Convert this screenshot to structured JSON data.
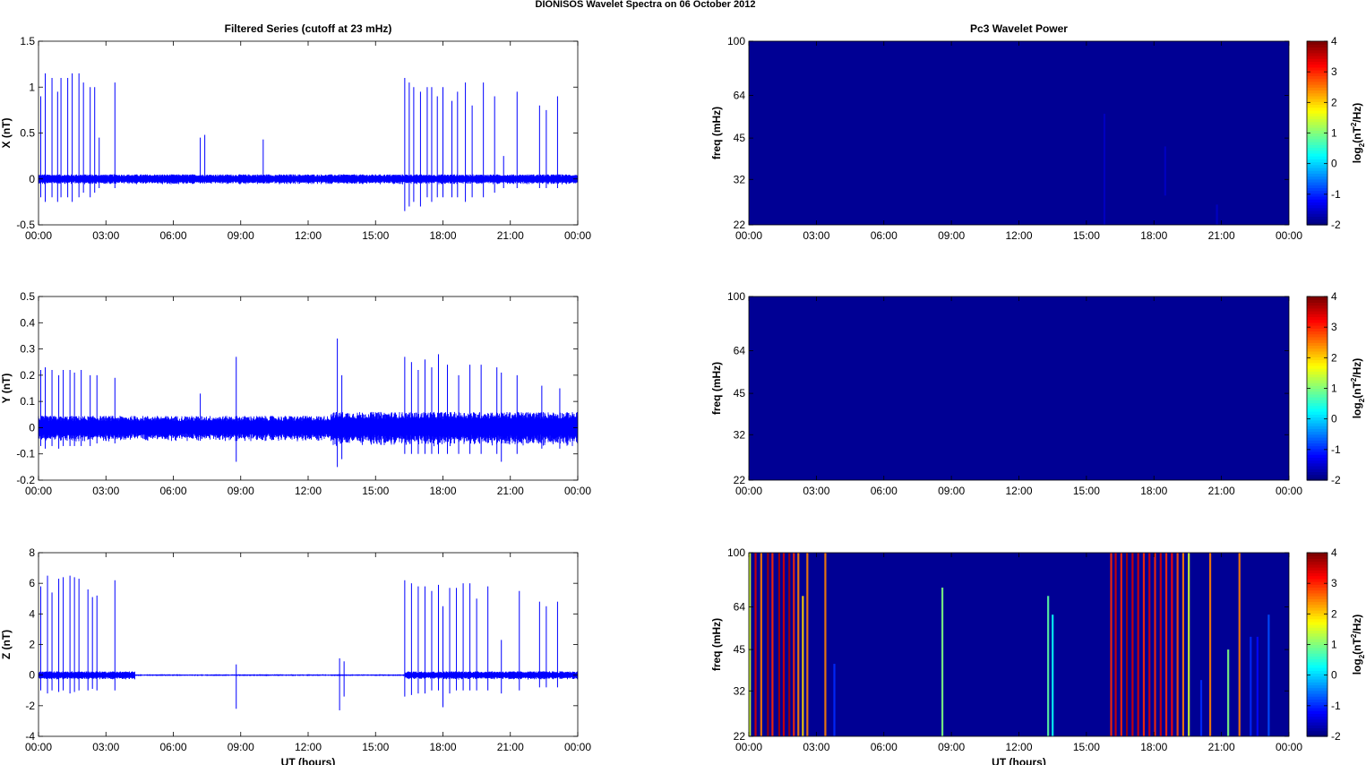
{
  "figure_title": "DIONISOS Wavelet Spectra on 06 October   2012",
  "chart_data": [
    {
      "type": "line",
      "title": "Filtered Series (cutoff at 23 mHz)",
      "xlabel": "",
      "ylabel": "X (nT)",
      "x_ticklabels": [
        "00:00",
        "03:00",
        "06:00",
        "09:00",
        "12:00",
        "15:00",
        "18:00",
        "21:00",
        "00:00"
      ],
      "xlim_hours": [
        0,
        24
      ],
      "ylim": [
        -0.5,
        1.5
      ],
      "y_ticks": [
        -0.5,
        0,
        0.5,
        1,
        1.5
      ],
      "y_ticklabels": [
        "-0.5",
        "0",
        "0.5",
        "1",
        "1.5"
      ],
      "color": "#0000ff",
      "noise_band": [
        {
          "from_hour": 0,
          "to_hour": 24,
          "amplitude": 0.05
        }
      ],
      "spikes": [
        {
          "t": 0.1,
          "max": 0.9,
          "min": -0.2
        },
        {
          "t": 0.3,
          "max": 1.15,
          "min": -0.25
        },
        {
          "t": 0.6,
          "max": 1.1,
          "min": -0.2
        },
        {
          "t": 0.85,
          "max": 0.95,
          "min": -0.25
        },
        {
          "t": 1.0,
          "max": 1.1,
          "min": -0.2
        },
        {
          "t": 1.3,
          "max": 1.1,
          "min": -0.2
        },
        {
          "t": 1.5,
          "max": 1.15,
          "min": -0.25
        },
        {
          "t": 1.8,
          "max": 1.15,
          "min": -0.2
        },
        {
          "t": 2.0,
          "max": 1.05,
          "min": -0.15
        },
        {
          "t": 2.3,
          "max": 1.0,
          "min": -0.2
        },
        {
          "t": 2.5,
          "max": 1.0,
          "min": -0.15
        },
        {
          "t": 2.7,
          "max": 0.45,
          "min": -0.1
        },
        {
          "t": 3.4,
          "max": 1.05,
          "min": -0.1
        },
        {
          "t": 7.2,
          "max": 0.45,
          "min": -0.05
        },
        {
          "t": 7.4,
          "max": 0.48,
          "min": -0.05
        },
        {
          "t": 10.0,
          "max": 0.43,
          "min": -0.05
        },
        {
          "t": 16.3,
          "max": 1.1,
          "min": -0.35
        },
        {
          "t": 16.5,
          "max": 1.05,
          "min": -0.3
        },
        {
          "t": 16.7,
          "max": 1.0,
          "min": -0.25
        },
        {
          "t": 17.0,
          "max": 0.95,
          "min": -0.3
        },
        {
          "t": 17.3,
          "max": 1.0,
          "min": -0.2
        },
        {
          "t": 17.5,
          "max": 1.0,
          "min": -0.25
        },
        {
          "t": 17.75,
          "max": 0.9,
          "min": -0.2
        },
        {
          "t": 18.0,
          "max": 1.0,
          "min": -0.2
        },
        {
          "t": 18.4,
          "max": 0.85,
          "min": -0.2
        },
        {
          "t": 18.65,
          "max": 0.95,
          "min": -0.2
        },
        {
          "t": 19.0,
          "max": 1.05,
          "min": -0.25
        },
        {
          "t": 19.3,
          "max": 0.8,
          "min": -0.2
        },
        {
          "t": 19.8,
          "max": 1.05,
          "min": -0.2
        },
        {
          "t": 20.3,
          "max": 0.9,
          "min": -0.15
        },
        {
          "t": 20.7,
          "max": 0.25,
          "min": -0.1
        },
        {
          "t": 21.3,
          "max": 0.95,
          "min": -0.1
        },
        {
          "t": 22.3,
          "max": 0.8,
          "min": -0.1
        },
        {
          "t": 22.6,
          "max": 0.75,
          "min": -0.1
        },
        {
          "t": 23.1,
          "max": 0.9,
          "min": -0.1
        }
      ]
    },
    {
      "type": "heatmap",
      "title": "Pc3 Wavelet Power",
      "xlabel": "",
      "ylabel": "freq (mHz)",
      "x_ticklabels": [
        "00:00",
        "03:00",
        "06:00",
        "09:00",
        "12:00",
        "15:00",
        "18:00",
        "21:00",
        "00:00"
      ],
      "xlim_hours": [
        0,
        24
      ],
      "y_scale": "log",
      "ylim_mHz": [
        22,
        100
      ],
      "y_ticks": [
        22,
        32,
        45,
        64,
        100
      ],
      "y_ticklabels": [
        "22",
        "32",
        "45",
        "64",
        "100"
      ],
      "colorbar": {
        "label_base": "log",
        "label_sub": "2",
        "label_mid": "(nT",
        "label_sup": "2",
        "label_tail": "/Hz)",
        "range": [
          -2,
          4
        ],
        "ticks": [
          -2,
          -1,
          0,
          1,
          2,
          3,
          4
        ],
        "ticklabels": [
          "-2",
          "-1",
          "0",
          "1",
          "2",
          "3",
          "4"
        ]
      },
      "background_level": -2,
      "features": [
        {
          "t": 15.8,
          "level": -1.6,
          "fmin": 22,
          "fmax": 55
        },
        {
          "t": 18.5,
          "level": -1.6,
          "fmin": 28,
          "fmax": 42
        },
        {
          "t": 20.8,
          "level": -1.6,
          "fmin": 22,
          "fmax": 26
        }
      ]
    },
    {
      "type": "line",
      "title": "",
      "xlabel": "",
      "ylabel": "Y (nT)",
      "x_ticklabels": [
        "00:00",
        "03:00",
        "06:00",
        "09:00",
        "12:00",
        "15:00",
        "18:00",
        "21:00",
        "00:00"
      ],
      "xlim_hours": [
        0,
        24
      ],
      "ylim": [
        -0.2,
        0.5
      ],
      "y_ticks": [
        -0.2,
        -0.1,
        0,
        0.1,
        0.2,
        0.3,
        0.4,
        0.5
      ],
      "y_ticklabels": [
        "-0.2",
        "-0.1",
        "0",
        "0.1",
        "0.2",
        "0.3",
        "0.4",
        "0.5"
      ],
      "color": "#0000ff",
      "noise_band": [
        {
          "from_hour": 0,
          "to_hour": 13,
          "amplitude": 0.045
        },
        {
          "from_hour": 13,
          "to_hour": 24,
          "amplitude": 0.06
        }
      ],
      "spikes": [
        {
          "t": 0.1,
          "max": 0.22,
          "min": -0.07
        },
        {
          "t": 0.3,
          "max": 0.23,
          "min": -0.08
        },
        {
          "t": 0.6,
          "max": 0.22,
          "min": -0.07
        },
        {
          "t": 0.9,
          "max": 0.2,
          "min": -0.08
        },
        {
          "t": 1.1,
          "max": 0.22,
          "min": -0.07
        },
        {
          "t": 1.4,
          "max": 0.22,
          "min": -0.07
        },
        {
          "t": 1.6,
          "max": 0.21,
          "min": -0.07
        },
        {
          "t": 1.9,
          "max": 0.22,
          "min": -0.07
        },
        {
          "t": 2.3,
          "max": 0.2,
          "min": -0.07
        },
        {
          "t": 2.6,
          "max": 0.2,
          "min": -0.06
        },
        {
          "t": 3.4,
          "max": 0.19,
          "min": -0.06
        },
        {
          "t": 7.2,
          "max": 0.13,
          "min": -0.05
        },
        {
          "t": 8.8,
          "max": 0.27,
          "min": -0.13
        },
        {
          "t": 13.3,
          "max": 0.34,
          "min": -0.15
        },
        {
          "t": 13.5,
          "max": 0.2,
          "min": -0.12
        },
        {
          "t": 16.3,
          "max": 0.27,
          "min": -0.1
        },
        {
          "t": 16.6,
          "max": 0.25,
          "min": -0.1
        },
        {
          "t": 16.9,
          "max": 0.22,
          "min": -0.1
        },
        {
          "t": 17.2,
          "max": 0.26,
          "min": -0.1
        },
        {
          "t": 17.5,
          "max": 0.23,
          "min": -0.1
        },
        {
          "t": 17.8,
          "max": 0.28,
          "min": -0.1
        },
        {
          "t": 18.2,
          "max": 0.24,
          "min": -0.1
        },
        {
          "t": 18.7,
          "max": 0.2,
          "min": -0.1
        },
        {
          "t": 19.2,
          "max": 0.24,
          "min": -0.1
        },
        {
          "t": 19.7,
          "max": 0.24,
          "min": -0.1
        },
        {
          "t": 20.4,
          "max": 0.23,
          "min": -0.1
        },
        {
          "t": 20.6,
          "max": 0.21,
          "min": -0.13
        },
        {
          "t": 21.3,
          "max": 0.2,
          "min": -0.1
        },
        {
          "t": 22.4,
          "max": 0.16,
          "min": -0.08
        },
        {
          "t": 23.2,
          "max": 0.15,
          "min": -0.08
        }
      ]
    },
    {
      "type": "heatmap",
      "title": "",
      "xlabel": "",
      "ylabel": "freq (mHz)",
      "x_ticklabels": [
        "00:00",
        "03:00",
        "06:00",
        "09:00",
        "12:00",
        "15:00",
        "18:00",
        "21:00",
        "00:00"
      ],
      "xlim_hours": [
        0,
        24
      ],
      "y_scale": "log",
      "ylim_mHz": [
        22,
        100
      ],
      "y_ticks": [
        22,
        32,
        45,
        64,
        100
      ],
      "y_ticklabels": [
        "22",
        "32",
        "45",
        "64",
        "100"
      ],
      "colorbar": {
        "label_base": "log",
        "label_sub": "2",
        "label_mid": "(nT",
        "label_sup": "2",
        "label_tail": "/Hz)",
        "range": [
          -2,
          4
        ],
        "ticks": [
          -2,
          -1,
          0,
          1,
          2,
          3,
          4
        ],
        "ticklabels": [
          "-2",
          "-1",
          "0",
          "1",
          "2",
          "3",
          "4"
        ]
      },
      "background_level": -2,
      "features": []
    },
    {
      "type": "line",
      "title": "",
      "xlabel": "UT (hours)",
      "ylabel": "Z (nT)",
      "x_ticklabels": [
        "00:00",
        "03:00",
        "06:00",
        "09:00",
        "12:00",
        "15:00",
        "18:00",
        "21:00",
        "00:00"
      ],
      "xlim_hours": [
        0,
        24
      ],
      "ylim": [
        -4,
        8
      ],
      "y_ticks": [
        -4,
        -2,
        0,
        2,
        4,
        6,
        8
      ],
      "y_ticklabels": [
        "-4",
        "-2",
        "0",
        "2",
        "4",
        "6",
        "8"
      ],
      "color": "#0000ff",
      "noise_band": [
        {
          "from_hour": 0,
          "to_hour": 4.3,
          "amplitude": 0.25
        },
        {
          "from_hour": 4.3,
          "to_hour": 16.3,
          "amplitude": 0.05
        },
        {
          "from_hour": 16.3,
          "to_hour": 24,
          "amplitude": 0.25
        }
      ],
      "spikes": [
        {
          "t": 0.1,
          "max": 5.8,
          "min": -1.0
        },
        {
          "t": 0.4,
          "max": 6.5,
          "min": -1.2
        },
        {
          "t": 0.6,
          "max": 5.4,
          "min": -1.0
        },
        {
          "t": 0.9,
          "max": 6.3,
          "min": -1.1
        },
        {
          "t": 1.1,
          "max": 6.4,
          "min": -1.0
        },
        {
          "t": 1.4,
          "max": 6.5,
          "min": -1.2
        },
        {
          "t": 1.6,
          "max": 6.4,
          "min": -1.1
        },
        {
          "t": 1.8,
          "max": 6.3,
          "min": -1.0
        },
        {
          "t": 2.2,
          "max": 5.6,
          "min": -1.0
        },
        {
          "t": 2.4,
          "max": 5.1,
          "min": -0.9
        },
        {
          "t": 2.6,
          "max": 5.2,
          "min": -1.0
        },
        {
          "t": 3.4,
          "max": 6.2,
          "min": -1.0
        },
        {
          "t": 8.8,
          "max": 0.7,
          "min": -2.2
        },
        {
          "t": 13.4,
          "max": 1.1,
          "min": -2.3
        },
        {
          "t": 13.6,
          "max": 0.9,
          "min": -1.4
        },
        {
          "t": 16.3,
          "max": 6.2,
          "min": -1.4
        },
        {
          "t": 16.6,
          "max": 6.0,
          "min": -1.3
        },
        {
          "t": 16.9,
          "max": 5.8,
          "min": -1.2
        },
        {
          "t": 17.2,
          "max": 5.8,
          "min": -1.2
        },
        {
          "t": 17.5,
          "max": 5.5,
          "min": -1.0
        },
        {
          "t": 17.8,
          "max": 5.9,
          "min": -1.0
        },
        {
          "t": 18.0,
          "max": 4.5,
          "min": -2.1
        },
        {
          "t": 18.3,
          "max": 5.7,
          "min": -1.2
        },
        {
          "t": 18.6,
          "max": 5.7,
          "min": -1.0
        },
        {
          "t": 18.9,
          "max": 6.0,
          "min": -1.0
        },
        {
          "t": 19.2,
          "max": 6.0,
          "min": -1.0
        },
        {
          "t": 19.5,
          "max": 5.0,
          "min": -1.0
        },
        {
          "t": 20.0,
          "max": 5.8,
          "min": -1.0
        },
        {
          "t": 20.6,
          "max": 2.3,
          "min": -1.2
        },
        {
          "t": 21.4,
          "max": 5.5,
          "min": -1.0
        },
        {
          "t": 22.3,
          "max": 4.8,
          "min": -0.8
        },
        {
          "t": 22.6,
          "max": 4.5,
          "min": -0.8
        },
        {
          "t": 23.1,
          "max": 4.8,
          "min": -0.8
        }
      ]
    },
    {
      "type": "heatmap",
      "title": "",
      "xlabel": "UT (hours)",
      "ylabel": "freq (mHz)",
      "x_ticklabels": [
        "00:00",
        "03:00",
        "06:00",
        "09:00",
        "12:00",
        "15:00",
        "18:00",
        "21:00",
        "00:00"
      ],
      "xlim_hours": [
        0,
        24
      ],
      "y_scale": "log",
      "ylim_mHz": [
        22,
        100
      ],
      "y_ticks": [
        22,
        32,
        45,
        64,
        100
      ],
      "y_ticklabels": [
        "22",
        "32",
        "45",
        "64",
        "100"
      ],
      "colorbar": {
        "label_base": "log",
        "label_sub": "2",
        "label_mid": "(nT",
        "label_sup": "2",
        "label_tail": "/Hz)",
        "range": [
          -2,
          4
        ],
        "ticks": [
          -2,
          -1,
          0,
          1,
          2,
          3,
          4
        ],
        "ticklabels": [
          "-2",
          "-1",
          "0",
          "1",
          "2",
          "3",
          "4"
        ]
      },
      "background_level": -2,
      "features": [
        {
          "t": 0.05,
          "level": 1.5,
          "fmin": 22,
          "fmax": 100
        },
        {
          "t": 0.3,
          "level": 3.5,
          "fmin": 22,
          "fmax": 100
        },
        {
          "t": 0.55,
          "level": 2.5,
          "fmin": 22,
          "fmax": 100
        },
        {
          "t": 0.85,
          "level": 3.8,
          "fmin": 22,
          "fmax": 100
        },
        {
          "t": 1.05,
          "level": 3.0,
          "fmin": 22,
          "fmax": 100
        },
        {
          "t": 1.35,
          "level": 3.8,
          "fmin": 22,
          "fmax": 100
        },
        {
          "t": 1.55,
          "level": 3.5,
          "fmin": 22,
          "fmax": 100
        },
        {
          "t": 1.8,
          "level": 3.8,
          "fmin": 22,
          "fmax": 100
        },
        {
          "t": 2.0,
          "level": 3.0,
          "fmin": 22,
          "fmax": 100
        },
        {
          "t": 2.2,
          "level": 2.5,
          "fmin": 22,
          "fmax": 100
        },
        {
          "t": 2.4,
          "level": 2.0,
          "fmin": 22,
          "fmax": 70
        },
        {
          "t": 2.6,
          "level": 2.5,
          "fmin": 22,
          "fmax": 100
        },
        {
          "t": 3.4,
          "level": 2.5,
          "fmin": 22,
          "fmax": 100
        },
        {
          "t": 3.8,
          "level": -1.0,
          "fmin": 22,
          "fmax": 40
        },
        {
          "t": 8.6,
          "level": 1.0,
          "fmin": 22,
          "fmax": 75
        },
        {
          "t": 13.3,
          "level": 0.8,
          "fmin": 22,
          "fmax": 70
        },
        {
          "t": 13.5,
          "level": 0.3,
          "fmin": 22,
          "fmax": 60
        },
        {
          "t": 16.1,
          "level": 3.0,
          "fmin": 22,
          "fmax": 100
        },
        {
          "t": 16.3,
          "level": 3.5,
          "fmin": 22,
          "fmax": 100
        },
        {
          "t": 16.55,
          "level": 3.0,
          "fmin": 22,
          "fmax": 100
        },
        {
          "t": 16.8,
          "level": 3.8,
          "fmin": 22,
          "fmax": 100
        },
        {
          "t": 17.05,
          "level": 3.5,
          "fmin": 22,
          "fmax": 100
        },
        {
          "t": 17.3,
          "level": 3.5,
          "fmin": 22,
          "fmax": 100
        },
        {
          "t": 17.55,
          "level": 3.0,
          "fmin": 22,
          "fmax": 100
        },
        {
          "t": 17.8,
          "level": 3.5,
          "fmin": 22,
          "fmax": 100
        },
        {
          "t": 18.05,
          "level": 3.0,
          "fmin": 22,
          "fmax": 100
        },
        {
          "t": 18.3,
          "level": 3.5,
          "fmin": 22,
          "fmax": 100
        },
        {
          "t": 18.55,
          "level": 3.0,
          "fmin": 22,
          "fmax": 100
        },
        {
          "t": 18.8,
          "level": 3.2,
          "fmin": 22,
          "fmax": 100
        },
        {
          "t": 19.05,
          "level": 2.8,
          "fmin": 22,
          "fmax": 100
        },
        {
          "t": 19.3,
          "level": 2.5,
          "fmin": 22,
          "fmax": 100
        },
        {
          "t": 19.55,
          "level": 1.5,
          "fmin": 22,
          "fmax": 100
        },
        {
          "t": 20.1,
          "level": -1.0,
          "fmin": 22,
          "fmax": 35
        },
        {
          "t": 20.5,
          "level": 2.5,
          "fmin": 22,
          "fmax": 100
        },
        {
          "t": 21.3,
          "level": 1.0,
          "fmin": 22,
          "fmax": 45
        },
        {
          "t": 21.8,
          "level": 2.5,
          "fmin": 22,
          "fmax": 100
        },
        {
          "t": 22.3,
          "level": -1.0,
          "fmin": 22,
          "fmax": 50
        },
        {
          "t": 22.6,
          "level": -1.2,
          "fmin": 22,
          "fmax": 50
        },
        {
          "t": 23.1,
          "level": -0.8,
          "fmin": 22,
          "fmax": 60
        }
      ]
    }
  ]
}
